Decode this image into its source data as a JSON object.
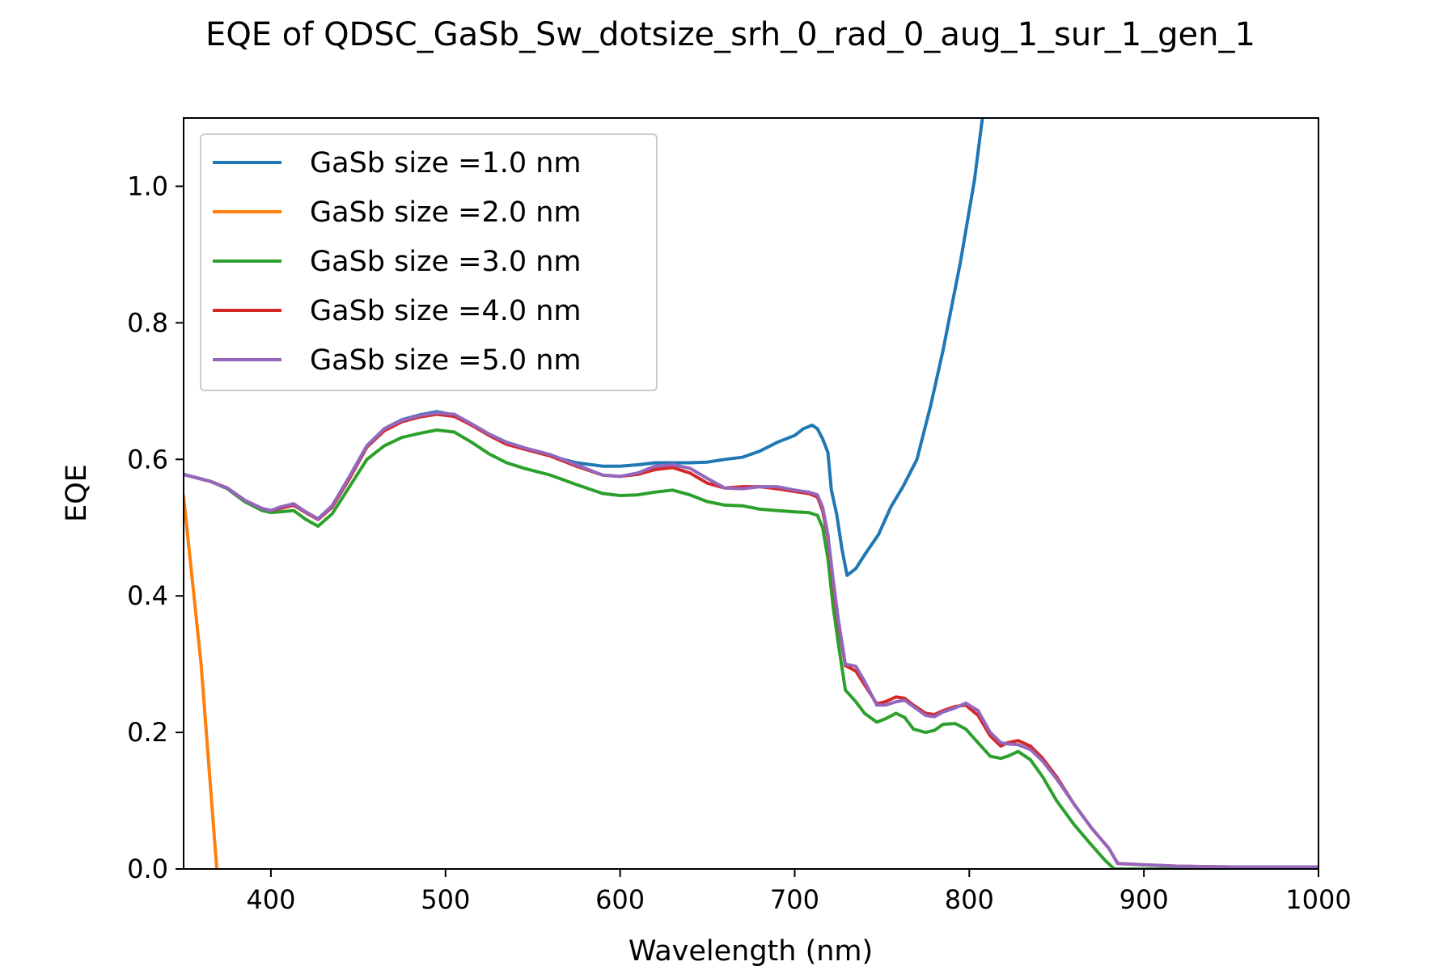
{
  "chart_data": {
    "type": "line",
    "title": "EQE of  QDSC_GaSb_Sw_dotsize_srh_0_rad_0_aug_1_sur_1_gen_1",
    "xlabel": "Wavelength (nm)",
    "ylabel": "EQE",
    "xlim": [
      350,
      1000
    ],
    "ylim": [
      0,
      1.1
    ],
    "xticks": [
      400,
      500,
      600,
      700,
      800,
      900,
      1000
    ],
    "yticks": [
      0.0,
      0.2,
      0.4,
      0.6,
      0.8,
      1.0
    ],
    "xtick_labels": [
      "400",
      "500",
      "600",
      "700",
      "800",
      "900",
      "1000"
    ],
    "ytick_labels": [
      "0.0",
      "0.2",
      "0.4",
      "0.6",
      "0.8",
      "1.0"
    ],
    "grid": false,
    "legend_position": "upper-left",
    "series": [
      {
        "name": "GaSb size =1.0 nm",
        "color": "#1f77b4",
        "x": [
          350,
          365,
          375,
          385,
          395,
          400,
          405,
          413,
          420,
          427,
          435,
          445,
          455,
          465,
          475,
          485,
          495,
          505,
          515,
          525,
          535,
          545,
          560,
          575,
          590,
          600,
          610,
          620,
          630,
          640,
          650,
          660,
          670,
          680,
          690,
          700,
          705,
          710,
          713,
          716,
          719,
          721,
          724,
          727,
          730,
          735,
          740,
          748,
          755,
          762,
          770,
          778,
          785,
          795,
          803,
          808
        ],
        "y": [
          0.578,
          0.568,
          0.558,
          0.54,
          0.528,
          0.525,
          0.528,
          0.533,
          0.522,
          0.512,
          0.53,
          0.575,
          0.62,
          0.645,
          0.658,
          0.665,
          0.67,
          0.665,
          0.65,
          0.637,
          0.625,
          0.617,
          0.605,
          0.595,
          0.59,
          0.59,
          0.592,
          0.595,
          0.595,
          0.595,
          0.596,
          0.6,
          0.603,
          0.612,
          0.625,
          0.635,
          0.645,
          0.65,
          0.645,
          0.63,
          0.61,
          0.555,
          0.52,
          0.47,
          0.43,
          0.44,
          0.46,
          0.49,
          0.53,
          0.56,
          0.6,
          0.68,
          0.76,
          0.89,
          1.01,
          1.11
        ]
      },
      {
        "name": "GaSb size =2.0 nm",
        "color": "#ff7f0e",
        "x": [
          350,
          360,
          369
        ],
        "y": [
          0.545,
          0.3,
          0.0
        ]
      },
      {
        "name": "GaSb size =3.0 nm",
        "color": "#2ca02c",
        "x": [
          350,
          365,
          375,
          385,
          395,
          400,
          405,
          413,
          420,
          427,
          435,
          445,
          455,
          465,
          475,
          485,
          495,
          505,
          515,
          525,
          535,
          545,
          560,
          575,
          590,
          600,
          610,
          620,
          630,
          640,
          650,
          660,
          670,
          680,
          690,
          700,
          708,
          713,
          716,
          719,
          722,
          725,
          729,
          735,
          740,
          747,
          752,
          758,
          763,
          768,
          775,
          780,
          785,
          792,
          798,
          805,
          812,
          818,
          822,
          828,
          835,
          842,
          850,
          860,
          870,
          878,
          883,
          900,
          920,
          950,
          1000
        ],
        "y": [
          0.578,
          0.568,
          0.557,
          0.538,
          0.525,
          0.522,
          0.523,
          0.525,
          0.512,
          0.502,
          0.52,
          0.56,
          0.6,
          0.62,
          0.632,
          0.638,
          0.643,
          0.64,
          0.625,
          0.608,
          0.595,
          0.587,
          0.577,
          0.563,
          0.55,
          0.547,
          0.548,
          0.552,
          0.555,
          0.548,
          0.538,
          0.533,
          0.532,
          0.527,
          0.525,
          0.523,
          0.522,
          0.518,
          0.5,
          0.455,
          0.385,
          0.33,
          0.262,
          0.245,
          0.228,
          0.215,
          0.22,
          0.228,
          0.222,
          0.205,
          0.2,
          0.203,
          0.212,
          0.213,
          0.205,
          0.185,
          0.165,
          0.162,
          0.165,
          0.172,
          0.16,
          0.135,
          0.1,
          0.065,
          0.035,
          0.012,
          0.0,
          0.0,
          0.0,
          0.0,
          0.0
        ]
      },
      {
        "name": "GaSb size =4.0 nm",
        "color": "#d62728",
        "x": [
          350,
          365,
          375,
          385,
          395,
          400,
          405,
          413,
          420,
          427,
          435,
          445,
          455,
          465,
          475,
          485,
          495,
          505,
          515,
          525,
          535,
          545,
          560,
          575,
          590,
          600,
          610,
          620,
          630,
          640,
          650,
          660,
          670,
          680,
          690,
          700,
          708,
          713,
          716,
          719,
          722,
          725,
          729,
          735,
          740,
          747,
          752,
          758,
          763,
          768,
          775,
          780,
          785,
          792,
          798,
          805,
          812,
          818,
          822,
          828,
          835,
          842,
          850,
          860,
          870,
          880,
          885,
          900,
          920,
          950,
          1000
        ],
        "y": [
          0.578,
          0.568,
          0.558,
          0.54,
          0.528,
          0.525,
          0.528,
          0.533,
          0.522,
          0.512,
          0.53,
          0.572,
          0.618,
          0.642,
          0.655,
          0.662,
          0.666,
          0.663,
          0.65,
          0.635,
          0.622,
          0.615,
          0.605,
          0.59,
          0.577,
          0.575,
          0.578,
          0.585,
          0.588,
          0.58,
          0.565,
          0.558,
          0.56,
          0.56,
          0.557,
          0.553,
          0.55,
          0.545,
          0.525,
          0.485,
          0.42,
          0.36,
          0.298,
          0.29,
          0.27,
          0.242,
          0.245,
          0.252,
          0.25,
          0.24,
          0.228,
          0.226,
          0.232,
          0.238,
          0.24,
          0.225,
          0.195,
          0.18,
          0.185,
          0.188,
          0.18,
          0.162,
          0.135,
          0.095,
          0.06,
          0.03,
          0.008,
          0.006,
          0.004,
          0.003,
          0.003
        ]
      },
      {
        "name": "GaSb size =5.0 nm",
        "color": "#9467bd",
        "x": [
          350,
          365,
          375,
          385,
          395,
          400,
          405,
          413,
          420,
          427,
          435,
          445,
          455,
          465,
          475,
          485,
          495,
          505,
          515,
          525,
          535,
          545,
          560,
          575,
          590,
          600,
          610,
          620,
          630,
          640,
          650,
          660,
          670,
          680,
          690,
          700,
          708,
          713,
          716,
          719,
          722,
          725,
          729,
          735,
          740,
          747,
          752,
          758,
          763,
          768,
          775,
          780,
          785,
          792,
          798,
          805,
          812,
          818,
          822,
          828,
          835,
          842,
          850,
          860,
          870,
          880,
          885,
          900,
          920,
          950,
          1000
        ],
        "y": [
          0.578,
          0.568,
          0.558,
          0.54,
          0.528,
          0.525,
          0.53,
          0.535,
          0.523,
          0.513,
          0.532,
          0.575,
          0.62,
          0.645,
          0.657,
          0.664,
          0.668,
          0.666,
          0.652,
          0.637,
          0.625,
          0.617,
          0.607,
          0.592,
          0.577,
          0.575,
          0.58,
          0.59,
          0.592,
          0.587,
          0.572,
          0.558,
          0.557,
          0.56,
          0.56,
          0.555,
          0.552,
          0.548,
          0.53,
          0.49,
          0.425,
          0.365,
          0.3,
          0.297,
          0.275,
          0.24,
          0.24,
          0.245,
          0.247,
          0.238,
          0.225,
          0.223,
          0.23,
          0.236,
          0.243,
          0.232,
          0.2,
          0.185,
          0.183,
          0.182,
          0.175,
          0.158,
          0.132,
          0.095,
          0.06,
          0.03,
          0.008,
          0.006,
          0.004,
          0.003,
          0.003
        ]
      }
    ]
  }
}
